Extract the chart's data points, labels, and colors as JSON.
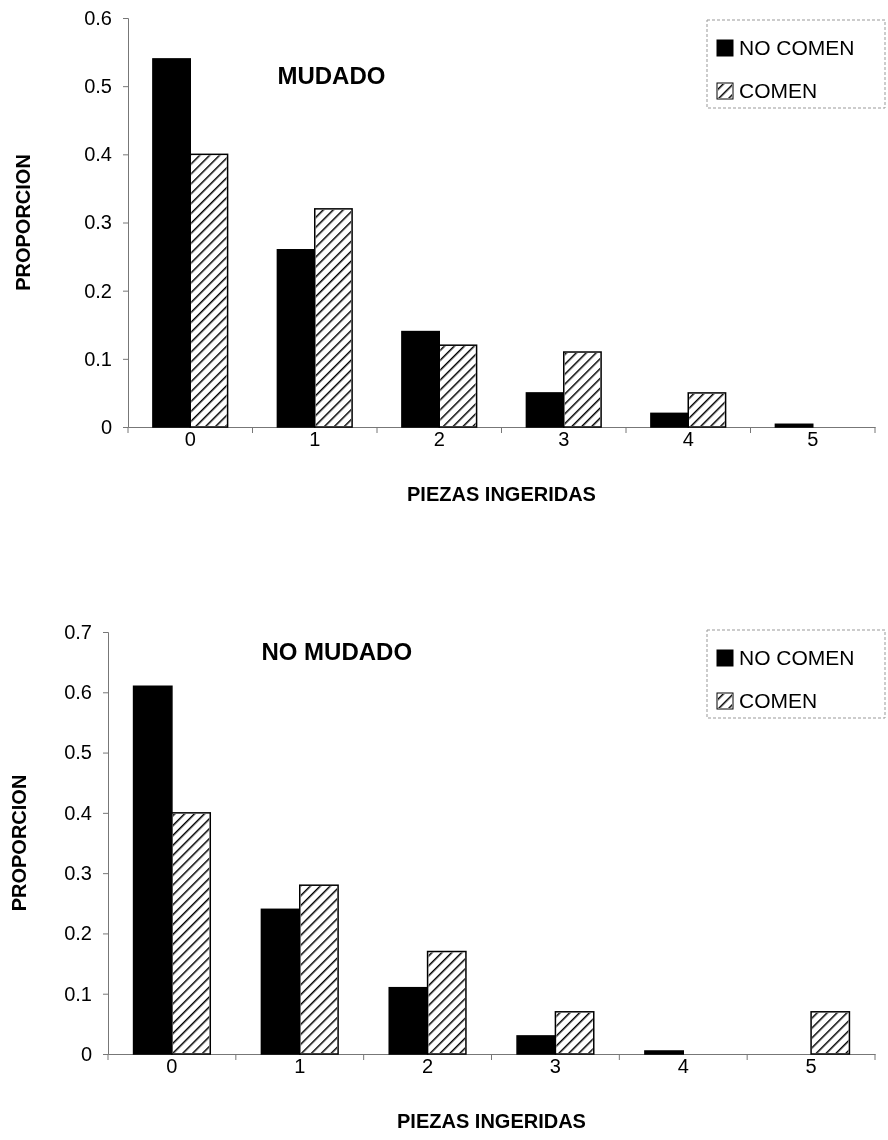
{
  "chart_data": [
    {
      "type": "bar",
      "title": "MUDADO",
      "xlabel": "PIEZAS INGERIDAS",
      "ylabel": "PROPORCION",
      "categories": [
        "0",
        "1",
        "2",
        "3",
        "4",
        "5"
      ],
      "series": [
        {
          "name": "NO COMEN",
          "color": "#000000",
          "values": [
            0.54,
            0.26,
            0.14,
            0.05,
            0.02,
            0.004
          ]
        },
        {
          "name": "COMEN",
          "color": "#ffffff",
          "values": [
            0.4,
            0.32,
            0.12,
            0.11,
            0.05,
            0
          ]
        }
      ],
      "ylim": [
        0,
        0.6
      ],
      "yticks": [
        0,
        0.1,
        0.2,
        0.3,
        0.4,
        0.5,
        0.6
      ],
      "grid": false,
      "legend": "top right"
    },
    {
      "type": "bar",
      "title": "NO MUDADO",
      "xlabel": "PIEZAS INGERIDAS",
      "ylabel": "PROPORCION",
      "categories": [
        "0",
        "1",
        "2",
        "3",
        "4",
        "5"
      ],
      "series": [
        {
          "name": "NO COMEN",
          "color": "#000000",
          "values": [
            0.61,
            0.24,
            0.11,
            0.03,
            0.005,
            0
          ]
        },
        {
          "name": "COMEN",
          "color": "#ffffff",
          "values": [
            0.4,
            0.28,
            0.17,
            0.07,
            0,
            0.07
          ]
        }
      ],
      "ylim": [
        0,
        0.7
      ],
      "yticks": [
        0,
        0.1,
        0.2,
        0.3,
        0.4,
        0.5,
        0.6,
        0.7
      ],
      "grid": false,
      "legend": "top right"
    }
  ]
}
